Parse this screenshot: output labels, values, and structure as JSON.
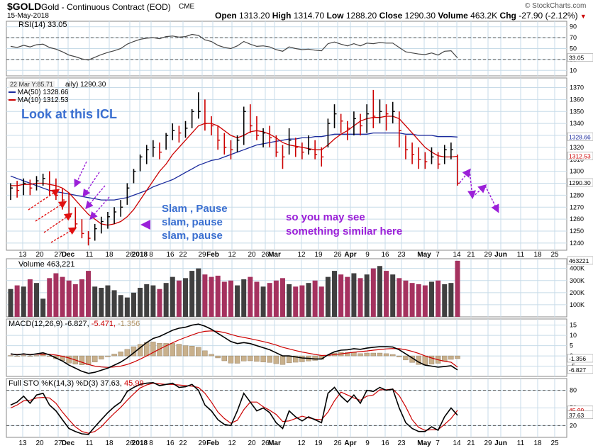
{
  "header": {
    "ticker": "$GOLD",
    "name": "Gold - Continuous Contract (EOD)",
    "exchange": "CME",
    "date": "15-May-2018",
    "open_label": "Open",
    "open": "1313.20",
    "high_label": "High",
    "high": "1314.70",
    "low_label": "Low",
    "low": "1288.20",
    "close_label": "Close",
    "close": "1290.30",
    "volume_label": "Volume",
    "volume": "463.2K",
    "chg_label": "Chg",
    "chg": "-27.90 (-2.12%)",
    "watermark": "© StockCharts.com"
  },
  "colors": {
    "up": "#000000",
    "down": "#cc0000",
    "ma50": "#1a2a9c",
    "ma10": "#cc0000",
    "volume_up": "#404040",
    "volume_down": "#a5325f",
    "macd_hist": "#c8b08c",
    "annotation_blue": "#3a6fd0",
    "annotation_purple": "#9b20d8",
    "grid": "#c7dbe8"
  },
  "panels": {
    "rsi": {
      "label": "RSI(14) 33.05",
      "ticks": [
        "90",
        "70",
        "50",
        "30",
        "10"
      ],
      "current": "33.05"
    },
    "price": {
      "tooltip": "22 Mar Y:85.71",
      "title_label": "aily) 1290.30",
      "ma50_label": "MA(50) 1328.66",
      "ma10_label": "MA(10) 1312.53",
      "ticks": [
        "1370",
        "1360",
        "1350",
        "1340",
        "1330",
        "1320",
        "1310",
        "1300",
        "1290",
        "1280",
        "1270",
        "1260",
        "1250",
        "1240"
      ],
      "flag_ma50": "1328.66",
      "flag_ma10": "1312.53",
      "flag_price": "1290.30"
    },
    "volume": {
      "label": "Volume 463,221",
      "ticks": [
        "400K",
        "300K",
        "200K",
        "100K"
      ],
      "current": "463221"
    },
    "macd": {
      "label_main": "MACD(12,26,9) -6.827,",
      "label_signal": "-5.471,",
      "label_hist": "-1.356",
      "ticks": [
        "15",
        "10",
        "5",
        "0",
        "-5"
      ],
      "current": "-6.827",
      "hist_current": "-1.356"
    },
    "sto": {
      "label_main": "Full STO %K(14,3) %D(3) 37.63,",
      "label_d": "45.99",
      "ticks": [
        "80",
        "50",
        "20"
      ],
      "current_d": "45.99",
      "current_k": "37.63"
    }
  },
  "x_axis": {
    "labels": [
      "13",
      "20",
      "27",
      "Dec",
      "11",
      "18",
      "26",
      "2018",
      "8",
      "16",
      "22",
      "29",
      "Feb",
      "12",
      "20",
      "26",
      "Mar",
      "12",
      "19",
      "26",
      "Apr",
      "9",
      "16",
      "23",
      "May",
      "7",
      "14",
      "21",
      "29",
      "Jun",
      "11",
      "18",
      "25"
    ]
  },
  "annotations": {
    "icl": "Look at this ICL",
    "slam1": "Slam , Pause",
    "slam2": "slam, pause",
    "slam3": "slam, pause",
    "similar1": "so you may see",
    "similar2": "something similar here"
  },
  "chart_data": {
    "type": "ohlc",
    "x": [
      "2017-11-13",
      "2017-11-15",
      "2017-11-17",
      "2017-11-20",
      "2017-11-22",
      "2017-11-24",
      "2017-11-27",
      "2017-11-29",
      "2017-12-01",
      "2017-12-04",
      "2017-12-06",
      "2017-12-08",
      "2017-12-11",
      "2017-12-13",
      "2017-12-15",
      "2017-12-18",
      "2017-12-20",
      "2017-12-22",
      "2017-12-26",
      "2017-12-28",
      "2018-01-02",
      "2018-01-04",
      "2018-01-08",
      "2018-01-10",
      "2018-01-12",
      "2018-01-16",
      "2018-01-18",
      "2018-01-22",
      "2018-01-24",
      "2018-01-26",
      "2018-01-29",
      "2018-01-31",
      "2018-02-02",
      "2018-02-06",
      "2018-02-08",
      "2018-02-12",
      "2018-02-14",
      "2018-02-16",
      "2018-02-20",
      "2018-02-22",
      "2018-02-26",
      "2018-02-28",
      "2018-03-02",
      "2018-03-06",
      "2018-03-08",
      "2018-03-12",
      "2018-03-14",
      "2018-03-16",
      "2018-03-20",
      "2018-03-22",
      "2018-03-26",
      "2018-03-28",
      "2018-04-02",
      "2018-04-04",
      "2018-04-06",
      "2018-04-09",
      "2018-04-11",
      "2018-04-13",
      "2018-04-16",
      "2018-04-18",
      "2018-04-20",
      "2018-04-24",
      "2018-04-26",
      "2018-04-30",
      "2018-05-02",
      "2018-05-04",
      "2018-05-08",
      "2018-05-10",
      "2018-05-14",
      "2018-05-15"
    ],
    "high": [
      1290,
      1292,
      1294,
      1293,
      1296,
      1298,
      1300,
      1294,
      1286,
      1282,
      1270,
      1260,
      1250,
      1256,
      1262,
      1266,
      1270,
      1276,
      1290,
      1302,
      1314,
      1322,
      1326,
      1324,
      1332,
      1340,
      1338,
      1342,
      1352,
      1366,
      1360,
      1346,
      1338,
      1332,
      1326,
      1330,
      1354,
      1356,
      1346,
      1336,
      1338,
      1330,
      1322,
      1336,
      1328,
      1324,
      1330,
      1326,
      1320,
      1344,
      1356,
      1348,
      1342,
      1350,
      1348,
      1356,
      1368,
      1360,
      1356,
      1358,
      1350,
      1330,
      1324,
      1320,
      1316,
      1320,
      1316,
      1322,
      1324,
      1314
    ],
    "low": [
      1276,
      1278,
      1280,
      1280,
      1284,
      1288,
      1280,
      1276,
      1268,
      1260,
      1252,
      1244,
      1238,
      1242,
      1248,
      1252,
      1256,
      1262,
      1272,
      1290,
      1300,
      1306,
      1312,
      1310,
      1318,
      1326,
      1324,
      1328,
      1336,
      1344,
      1334,
      1330,
      1318,
      1314,
      1310,
      1316,
      1322,
      1332,
      1326,
      1320,
      1320,
      1312,
      1302,
      1314,
      1312,
      1310,
      1314,
      1310,
      1304,
      1320,
      1336,
      1332,
      1326,
      1330,
      1330,
      1332,
      1336,
      1340,
      1334,
      1340,
      1320,
      1310,
      1306,
      1302,
      1302,
      1306,
      1302,
      1306,
      1310,
      1288
    ],
    "close": [
      1286,
      1284,
      1290,
      1286,
      1292,
      1294,
      1284,
      1280,
      1276,
      1262,
      1256,
      1248,
      1244,
      1252,
      1258,
      1262,
      1266,
      1270,
      1286,
      1300,
      1312,
      1318,
      1320,
      1316,
      1330,
      1334,
      1332,
      1336,
      1350,
      1350,
      1340,
      1338,
      1326,
      1320,
      1318,
      1326,
      1350,
      1338,
      1330,
      1332,
      1328,
      1316,
      1312,
      1326,
      1320,
      1316,
      1318,
      1314,
      1312,
      1340,
      1348,
      1342,
      1336,
      1344,
      1338,
      1348,
      1346,
      1350,
      1348,
      1350,
      1334,
      1318,
      1314,
      1310,
      1308,
      1312,
      1306,
      1318,
      1318,
      1290
    ],
    "ma50": [
      1296,
      1294,
      1292,
      1290,
      1288,
      1286,
      1284,
      1283,
      1282,
      1281,
      1280,
      1279,
      1278,
      1277,
      1276,
      1276,
      1276,
      1277,
      1278,
      1280,
      1282,
      1284,
      1287,
      1289,
      1291,
      1293,
      1296,
      1299,
      1302,
      1305,
      1307,
      1309,
      1310,
      1312,
      1314,
      1316,
      1318,
      1320,
      1322,
      1323,
      1324,
      1325,
      1326,
      1327,
      1327,
      1328,
      1328,
      1329,
      1329,
      1330,
      1331,
      1331,
      1331,
      1331,
      1331,
      1331,
      1332,
      1332,
      1332,
      1332,
      1332,
      1331,
      1331,
      1330,
      1330,
      1330,
      1329,
      1329,
      1329,
      1328.66
    ],
    "ma10": [
      1288,
      1288,
      1289,
      1289,
      1290,
      1290,
      1289,
      1288,
      1286,
      1282,
      1276,
      1270,
      1264,
      1260,
      1256,
      1255,
      1256,
      1258,
      1262,
      1268,
      1276,
      1284,
      1292,
      1300,
      1306,
      1314,
      1320,
      1326,
      1332,
      1338,
      1340,
      1340,
      1338,
      1334,
      1330,
      1328,
      1330,
      1333,
      1334,
      1333,
      1331,
      1328,
      1324,
      1322,
      1321,
      1320,
      1319,
      1318,
      1318,
      1322,
      1327,
      1331,
      1334,
      1338,
      1342,
      1344,
      1345,
      1345,
      1346,
      1346,
      1344,
      1338,
      1332,
      1326,
      1320,
      1316,
      1313,
      1312,
      1312,
      1312.53
    ],
    "rsi": [
      54,
      52,
      56,
      53,
      57,
      58,
      52,
      49,
      44,
      38,
      35,
      31,
      29,
      34,
      39,
      43,
      46,
      50,
      58,
      63,
      67,
      69,
      70,
      68,
      72,
      73,
      71,
      72,
      76,
      74,
      66,
      63,
      56,
      52,
      50,
      55,
      63,
      58,
      54,
      55,
      53,
      48,
      45,
      53,
      50,
      48,
      49,
      47,
      46,
      59,
      62,
      58,
      55,
      59,
      55,
      60,
      59,
      61,
      60,
      60,
      52,
      44,
      42,
      40,
      39,
      42,
      38,
      45,
      46,
      33.05
    ],
    "volume_k": [
      230,
      260,
      250,
      310,
      280,
      150,
      320,
      360,
      330,
      300,
      270,
      310,
      380,
      250,
      240,
      260,
      220,
      180,
      160,
      200,
      240,
      270,
      260,
      230,
      280,
      330,
      300,
      320,
      380,
      400,
      350,
      330,
      340,
      290,
      300,
      260,
      310,
      330,
      290,
      250,
      280,
      300,
      320,
      270,
      250,
      260,
      280,
      300,
      250,
      330,
      380,
      350,
      330,
      360,
      320,
      350,
      400,
      420,
      380,
      350,
      320,
      300,
      280,
      270,
      260,
      290,
      300,
      270,
      280,
      463.221
    ],
    "macd": [
      1,
      0.5,
      1,
      0.5,
      1,
      1.5,
      0.5,
      -1,
      -2.5,
      -4.5,
      -6,
      -7.5,
      -8.5,
      -8,
      -7,
      -6,
      -4.5,
      -3,
      -1,
      1.5,
      4,
      6.5,
      8.5,
      9.5,
      11,
      12.5,
      13.5,
      14,
      15,
      15.5,
      14.5,
      13,
      11,
      9,
      7,
      6,
      6.5,
      6,
      5,
      4,
      3,
      1.5,
      0,
      0,
      -0.5,
      -1,
      -1.2,
      -1.5,
      -1.5,
      0.5,
      2,
      2.8,
      3,
      3.5,
      3.2,
      3.8,
      4.2,
      4.5,
      4.5,
      4.3,
      3,
      1,
      -1,
      -3,
      -4.5,
      -5,
      -5.5,
      -5.2,
      -4.8,
      -6.827
    ],
    "macd_signal": [
      0.8,
      0.7,
      0.8,
      0.7,
      0.8,
      0.9,
      0.8,
      0.4,
      -0.2,
      -1,
      -2,
      -3.1,
      -4.2,
      -5,
      -5.4,
      -5.6,
      -5.4,
      -5,
      -4.2,
      -3,
      -1.6,
      0,
      1.7,
      3.3,
      4.9,
      6.4,
      7.8,
      9,
      10.2,
      11.3,
      12,
      12.2,
      12,
      11.4,
      10.5,
      9.6,
      9,
      8.4,
      7.7,
      7,
      6.2,
      5.3,
      4.2,
      3.4,
      2.6,
      1.9,
      1.3,
      0.7,
      0.2,
      0.3,
      0.6,
      1,
      1.4,
      1.8,
      2.1,
      2.4,
      2.8,
      3.1,
      3.4,
      3.6,
      3.5,
      3,
      2.2,
      1.2,
      0,
      -1,
      -1.9,
      -2.6,
      -3.1,
      -5.471
    ],
    "macd_hist": [
      0.2,
      -0.2,
      0.2,
      -0.2,
      0.2,
      0.6,
      -0.3,
      -1.4,
      -2.3,
      -3.5,
      -4,
      -4.4,
      -4.3,
      -3,
      -1.6,
      -0.4,
      0.9,
      2,
      3.2,
      4.5,
      5.6,
      6.5,
      6.8,
      6.2,
      6.1,
      6.1,
      5.7,
      5,
      4.8,
      4.2,
      2.5,
      0.8,
      -1,
      -2.4,
      -3.5,
      -3.6,
      -2.5,
      -2.4,
      -2.7,
      -3,
      -3.2,
      -3.8,
      -4.2,
      -3.4,
      -3.1,
      -2.9,
      -2.5,
      -2.2,
      -1.7,
      0.2,
      1.4,
      1.8,
      1.6,
      1.7,
      1.1,
      1.4,
      1.4,
      1.4,
      1.1,
      0.7,
      -0.5,
      -2,
      -3.2,
      -4.2,
      -4.5,
      -4,
      -3.6,
      -2.6,
      -1.7,
      -1.356
    ],
    "sto_k": [
      55,
      60,
      70,
      58,
      72,
      75,
      55,
      45,
      30,
      15,
      10,
      6,
      5,
      18,
      30,
      42,
      52,
      60,
      78,
      85,
      90,
      92,
      93,
      88,
      90,
      92,
      85,
      86,
      90,
      80,
      55,
      45,
      30,
      22,
      20,
      45,
      75,
      60,
      45,
      50,
      42,
      25,
      15,
      45,
      35,
      28,
      35,
      30,
      25,
      75,
      85,
      70,
      60,
      72,
      58,
      80,
      78,
      85,
      80,
      82,
      50,
      25,
      15,
      10,
      10,
      18,
      12,
      35,
      50,
      37.63
    ],
    "sto_d": [
      50,
      55,
      62,
      63,
      67,
      68,
      67,
      58,
      43,
      30,
      18,
      10,
      7,
      10,
      18,
      30,
      41,
      51,
      63,
      74,
      84,
      89,
      92,
      91,
      90,
      90,
      89,
      88,
      87,
      85,
      75,
      60,
      43,
      32,
      24,
      29,
      47,
      60,
      60,
      52,
      46,
      39,
      27,
      28,
      32,
      36,
      33,
      31,
      30,
      43,
      62,
      77,
      72,
      67,
      63,
      70,
      72,
      81,
      81,
      82,
      71,
      52,
      30,
      17,
      12,
      13,
      13,
      22,
      32,
      45.99
    ],
    "ylim_price": [
      1234,
      1378
    ],
    "ylim_rsi": [
      0,
      100
    ],
    "ylim_volume_k": [
      0,
      480
    ],
    "ylim_macd": [
      -10,
      18
    ],
    "ylim_sto": [
      0,
      100
    ],
    "grid": true
  }
}
